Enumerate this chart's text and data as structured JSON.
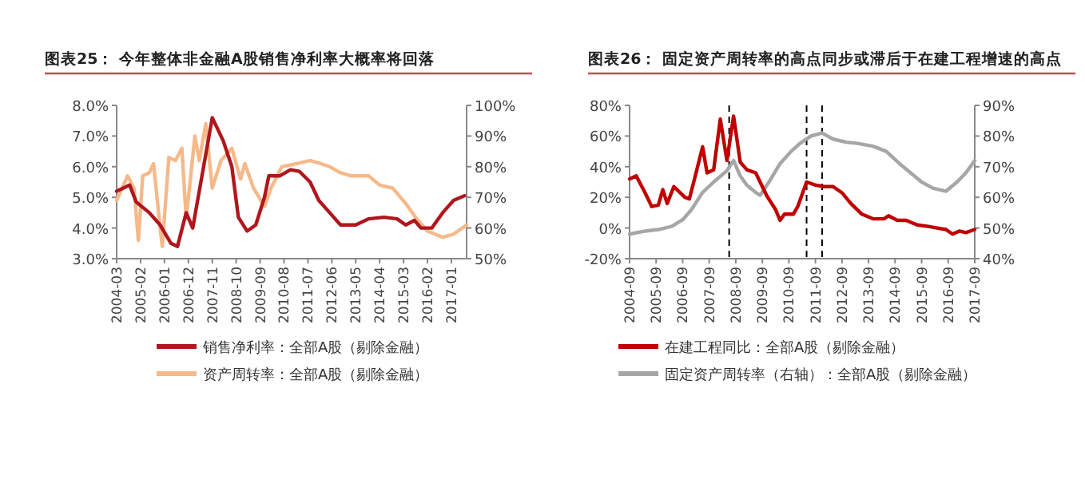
{
  "chart_data": [
    {
      "type": "line",
      "title": "图表25：  今年整体非金融A股销售净利率大概率将回落",
      "xlim": [
        "2004-03",
        "2017-08"
      ],
      "xticks": [
        "2004-03",
        "2005-02",
        "2006-01",
        "2006-12",
        "2007-11",
        "2008-10",
        "2009-09",
        "2010-08",
        "2011-07",
        "2012-06",
        "2013-05",
        "2014-04",
        "2015-03",
        "2016-02",
        "2017-01"
      ],
      "ylim": [
        3,
        8
      ],
      "yticks": [
        {
          "value": 3,
          "label": "3.0%"
        },
        {
          "value": 4,
          "label": "4.0%"
        },
        {
          "value": 5,
          "label": "5.0%"
        },
        {
          "value": 6,
          "label": "6.0%"
        },
        {
          "value": 7,
          "label": "7.0%"
        },
        {
          "value": 8,
          "label": "8.0%"
        }
      ],
      "y2lim": [
        50,
        100
      ],
      "y2ticks": [
        {
          "value": 50,
          "label": "50%"
        },
        {
          "value": 60,
          "label": "60%"
        },
        {
          "value": 70,
          "label": "70%"
        },
        {
          "value": 80,
          "label": "80%"
        },
        {
          "value": 90,
          "label": "90%"
        },
        {
          "value": 100,
          "label": "100%"
        }
      ],
      "legend": "bottom",
      "series": [
        {
          "name": "销售净利率：全部A股（剔除金融）",
          "color": "#b0161d",
          "x": [
            "2004-03",
            "2004-09",
            "2004-12",
            "2005-06",
            "2005-11",
            "2006-04",
            "2006-07",
            "2006-11",
            "2007-02",
            "2007-07",
            "2007-11",
            "2008-04",
            "2008-08",
            "2008-11",
            "2009-03",
            "2009-07",
            "2009-11",
            "2010-01",
            "2010-06",
            "2010-11",
            "2011-03",
            "2011-08",
            "2011-12",
            "2012-05",
            "2012-10",
            "2013-05",
            "2013-11",
            "2014-06",
            "2014-12",
            "2015-04",
            "2015-08",
            "2015-11",
            "2016-04",
            "2016-09",
            "2017-02",
            "2017-07"
          ],
          "values": [
            5.2,
            5.4,
            4.85,
            4.5,
            4.1,
            3.5,
            3.4,
            4.5,
            4.0,
            6.0,
            7.6,
            6.85,
            6.0,
            4.35,
            3.9,
            4.1,
            5.0,
            5.7,
            5.7,
            5.9,
            5.85,
            5.5,
            4.9,
            4.5,
            4.1,
            4.1,
            4.3,
            4.35,
            4.3,
            4.1,
            4.25,
            4.0,
            4.0,
            4.5,
            4.9,
            5.05
          ]
        },
        {
          "name": "资产周转率：全部A股（剔除金融）",
          "color": "#f5b98a",
          "axis": "y2",
          "x": [
            "2004-03",
            "2004-08",
            "2004-11",
            "2005-01",
            "2005-03",
            "2005-06",
            "2005-08",
            "2005-11",
            "2005-12",
            "2006-03",
            "2006-06",
            "2006-09",
            "2006-11",
            "2007-03",
            "2007-05",
            "2007-08",
            "2007-11",
            "2008-03",
            "2008-08",
            "2008-12",
            "2009-02",
            "2009-06",
            "2009-11",
            "2010-02",
            "2010-07",
            "2011-02",
            "2011-08",
            "2012-01",
            "2012-05",
            "2012-10",
            "2013-03",
            "2013-11",
            "2014-04",
            "2014-10",
            "2015-04",
            "2015-09",
            "2016-02",
            "2016-09",
            "2017-02",
            "2017-08"
          ],
          "values": [
            69,
            77,
            73,
            56,
            77,
            78,
            81,
            60,
            54,
            83,
            82,
            86,
            63,
            90,
            82,
            94,
            73,
            82,
            86,
            76,
            81,
            73,
            67,
            73,
            80,
            81,
            82,
            81,
            80,
            78,
            77,
            77,
            74,
            73,
            68,
            63,
            59,
            57,
            58,
            61
          ]
        }
      ]
    },
    {
      "type": "line",
      "title": "图表26：  固定资产周转率的高点同步或滞后于在建工程增速的高点",
      "xlim": [
        "2004-09",
        "2017-09"
      ],
      "xticks": [
        "2004-09",
        "2005-09",
        "2006-09",
        "2007-09",
        "2008-09",
        "2009-09",
        "2010-09",
        "2011-09",
        "2012-09",
        "2013-09",
        "2014-09",
        "2015-09",
        "2016-09",
        "2017-09"
      ],
      "ylim": [
        -20,
        80
      ],
      "yticks": [
        {
          "value": -20,
          "label": "-20%"
        },
        {
          "value": 0,
          "label": "0%"
        },
        {
          "value": 20,
          "label": "20%"
        },
        {
          "value": 40,
          "label": "40%"
        },
        {
          "value": 60,
          "label": "60%"
        },
        {
          "value": 80,
          "label": "80%"
        }
      ],
      "y2lim": [
        40,
        90
      ],
      "y2ticks": [
        {
          "value": 40,
          "label": "40%"
        },
        {
          "value": 50,
          "label": "50%"
        },
        {
          "value": 60,
          "label": "60%"
        },
        {
          "value": 70,
          "label": "70%"
        },
        {
          "value": 80,
          "label": "80%"
        },
        {
          "value": 90,
          "label": "90%"
        }
      ],
      "legend": "bottom",
      "ref_lines": [
        {
          "axis": "x",
          "value": "2008-06",
          "color": "#000000",
          "line_style": "dashed"
        },
        {
          "axis": "x",
          "value": "2011-05",
          "color": "#000000",
          "line_style": "dashed"
        },
        {
          "axis": "x",
          "value": "2011-12",
          "color": "#000000",
          "line_style": "dashed"
        }
      ],
      "series": [
        {
          "name": "在建工程同比：全部A股（剔除金融）",
          "color": "#c00000",
          "x": [
            "2004-09",
            "2004-12",
            "2005-04",
            "2005-07",
            "2005-10",
            "2005-12",
            "2006-02",
            "2006-05",
            "2006-10",
            "2006-12",
            "2007-02",
            "2007-06",
            "2007-08",
            "2007-11",
            "2008-02",
            "2008-05",
            "2008-08",
            "2008-11",
            "2009-02",
            "2009-06",
            "2009-11",
            "2010-03",
            "2010-05",
            "2010-07",
            "2010-11",
            "2011-01",
            "2011-05",
            "2011-09",
            "2012-01",
            "2012-05",
            "2012-09",
            "2013-01",
            "2013-06",
            "2013-11",
            "2014-04",
            "2014-06",
            "2014-10",
            "2015-02",
            "2015-07",
            "2015-12",
            "2016-04",
            "2016-08",
            "2016-11",
            "2017-02",
            "2017-05",
            "2017-09"
          ],
          "values": [
            32,
            34,
            23,
            14,
            15,
            25,
            16,
            27,
            20,
            19,
            30,
            53,
            36,
            38,
            71,
            44,
            73,
            43,
            38,
            36,
            21,
            12,
            5,
            9,
            9,
            14,
            30,
            28,
            27,
            27,
            23,
            16,
            9,
            6,
            6,
            8,
            5,
            5,
            2,
            1,
            0,
            -1,
            -4,
            -2,
            -3,
            -1
          ]
        },
        {
          "name": "固定资产周转率（右轴）：全部A股（剔除金融）",
          "color": "#a6a6a6",
          "axis": "y2",
          "x": [
            "2004-09",
            "2005-04",
            "2005-10",
            "2006-04",
            "2006-09",
            "2007-01",
            "2007-06",
            "2007-11",
            "2008-05",
            "2008-08",
            "2008-11",
            "2009-02",
            "2009-06",
            "2009-08",
            "2009-12",
            "2010-05",
            "2010-10",
            "2011-02",
            "2011-07",
            "2011-12",
            "2012-05",
            "2012-11",
            "2013-04",
            "2013-11",
            "2014-05",
            "2014-11",
            "2015-04",
            "2015-09",
            "2016-02",
            "2016-08",
            "2017-01",
            "2017-05",
            "2017-09"
          ],
          "values": [
            48,
            49,
            49.5,
            50.5,
            52.7,
            56,
            61.6,
            65,
            68.7,
            72,
            67,
            64,
            61.6,
            60.7,
            65,
            71,
            75,
            77.6,
            80,
            81,
            79,
            78,
            77.6,
            76.7,
            75,
            71,
            68,
            65,
            63,
            62,
            65,
            68,
            72
          ]
        }
      ]
    }
  ]
}
